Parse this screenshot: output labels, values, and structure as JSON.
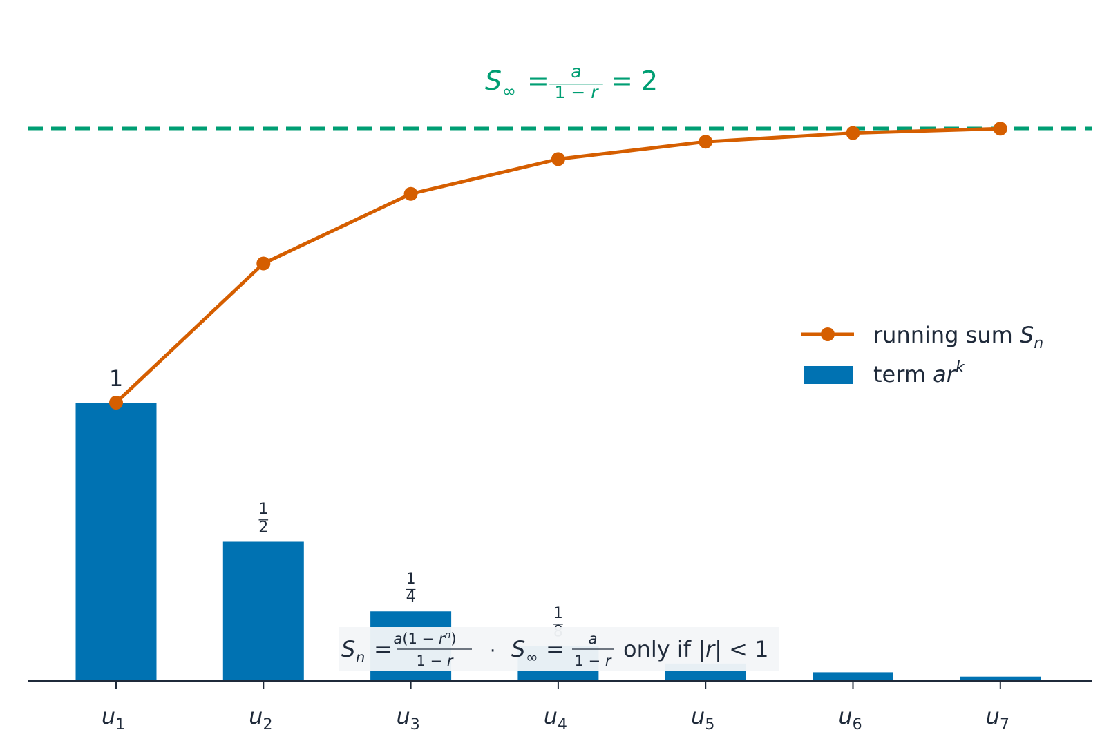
{
  "chart_data": {
    "type": "bar",
    "categories": [
      "u1",
      "u2",
      "u3",
      "u4",
      "u5",
      "u6",
      "u7"
    ],
    "tick_labels": [
      {
        "base": "u",
        "sub": "1"
      },
      {
        "base": "u",
        "sub": "2"
      },
      {
        "base": "u",
        "sub": "3"
      },
      {
        "base": "u",
        "sub": "4"
      },
      {
        "base": "u",
        "sub": "5"
      },
      {
        "base": "u",
        "sub": "6"
      },
      {
        "base": "u",
        "sub": "7"
      }
    ],
    "series": [
      {
        "name": "term ar^k",
        "type": "bar",
        "values": [
          1,
          0.5,
          0.25,
          0.125,
          0.0625,
          0.03125,
          0.015625
        ]
      },
      {
        "name": "running sum S_n",
        "type": "line",
        "values": [
          1,
          1.5,
          1.75,
          1.875,
          1.9375,
          1.96875,
          1.984375
        ]
      }
    ],
    "bar_value_labels": [
      {
        "kind": "plain",
        "text": "1"
      },
      {
        "kind": "frac",
        "num": "1",
        "den": "2"
      },
      {
        "kind": "frac",
        "num": "1",
        "den": "4"
      },
      {
        "kind": "frac",
        "num": "1",
        "den": "8"
      }
    ],
    "limit_line": {
      "value": 2,
      "label": {
        "lhs": "S",
        "sub": "∞",
        "num": "a",
        "den": "1 − r",
        "rhs": "= 2"
      }
    },
    "annotation": {
      "text": "S_n = a(1 − r^n)/(1 − r)  ·  S_∞ = a/(1 − r) only if |r| < 1"
    },
    "legend": {
      "placement": "center-right",
      "entries": [
        {
          "series": "running sum S_n",
          "text": "running sum ",
          "math": "S",
          "sub": "n"
        },
        {
          "series": "term ar^k",
          "text": "term ",
          "math": "ar",
          "sup": "k"
        }
      ]
    },
    "ylim": [
      0,
      2.01
    ],
    "grid": false,
    "colors": {
      "bar": "#0072b2",
      "line": "#d55e00",
      "limit": "#009e73",
      "axis": "#1f2a3a",
      "text": "#1f2a3a",
      "annotation_bg": "#f3f5f8"
    }
  }
}
